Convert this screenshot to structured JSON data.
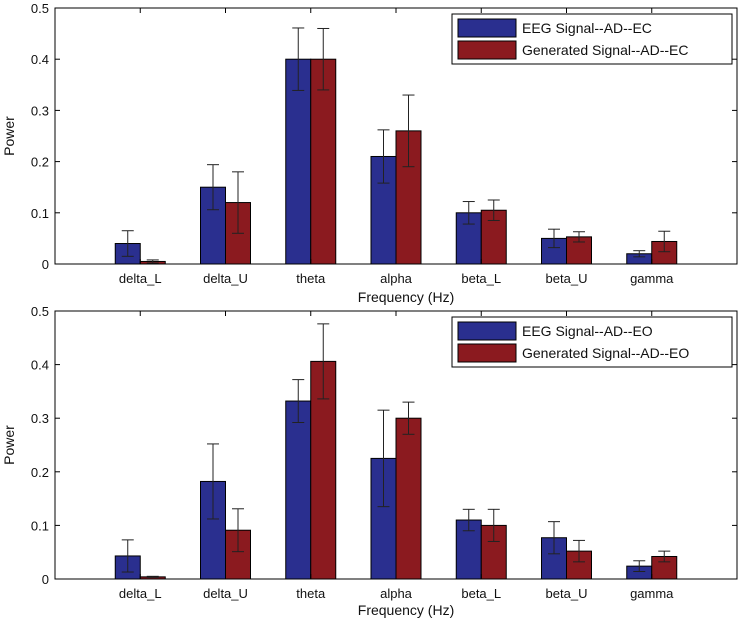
{
  "chart_data": [
    {
      "type": "bar",
      "name": "AD-EC",
      "categories": [
        "delta_L",
        "delta_U",
        "theta",
        "alpha",
        "beta_L",
        "beta_U",
        "gamma"
      ],
      "xlabel": "Frequency (Hz)",
      "ylabel": "Power",
      "ylim": [
        0,
        0.5
      ],
      "yticks": [
        0,
        0.1,
        0.2,
        0.3,
        0.4,
        0.5
      ],
      "ytick_labels": [
        "0",
        "0.1",
        "0.2",
        "0.3",
        "0.4",
        "0.5"
      ],
      "legend_position": "top-right",
      "series": [
        {
          "name": "EEG Signal--AD--EC",
          "color": "#2a2f8f",
          "values": [
            0.04,
            0.15,
            0.4,
            0.21,
            0.1,
            0.05,
            0.02
          ],
          "errors": [
            0.025,
            0.044,
            0.061,
            0.052,
            0.022,
            0.018,
            0.006
          ]
        },
        {
          "name": "Generated Signal--AD--EC",
          "color": "#8b1a1f",
          "values": [
            0.005,
            0.12,
            0.4,
            0.26,
            0.105,
            0.053,
            0.044
          ],
          "errors": [
            0.003,
            0.06,
            0.06,
            0.07,
            0.02,
            0.01,
            0.02
          ]
        }
      ]
    },
    {
      "type": "bar",
      "name": "AD-EO",
      "categories": [
        "delta_L",
        "delta_U",
        "theta",
        "alpha",
        "beta_L",
        "beta_U",
        "gamma"
      ],
      "xlabel": "Frequency (Hz)",
      "ylabel": "Power",
      "ylim": [
        0,
        0.5
      ],
      "yticks": [
        0,
        0.1,
        0.2,
        0.3,
        0.4,
        0.5
      ],
      "ytick_labels": [
        "0",
        "0.1",
        "0.2",
        "0.3",
        "0.4",
        "0.5"
      ],
      "legend_position": "top-right",
      "series": [
        {
          "name": "EEG Signal--AD--EO",
          "color": "#2a2f8f",
          "values": [
            0.043,
            0.182,
            0.332,
            0.225,
            0.11,
            0.077,
            0.024
          ],
          "errors": [
            0.03,
            0.07,
            0.04,
            0.09,
            0.02,
            0.03,
            0.01
          ]
        },
        {
          "name": "Generated Signal--AD--EO",
          "color": "#8b1a1f",
          "values": [
            0.004,
            0.091,
            0.406,
            0.3,
            0.1,
            0.052,
            0.042
          ],
          "errors": [
            0.001,
            0.04,
            0.07,
            0.03,
            0.03,
            0.02,
            0.01
          ]
        }
      ]
    }
  ]
}
